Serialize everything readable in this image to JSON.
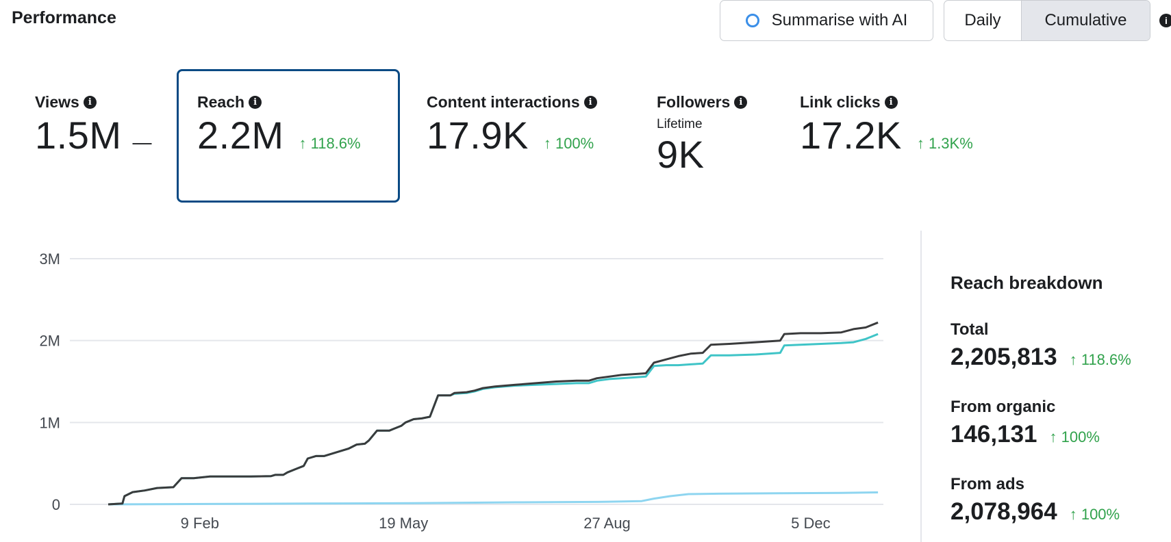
{
  "header": {
    "title": "Performance",
    "summarise_label": "Summarise with AI",
    "toggle": {
      "daily": "Daily",
      "cumulative": "Cumulative",
      "selected": "Cumulative"
    }
  },
  "metrics": [
    {
      "label": "Views",
      "value": "1.5M",
      "change": "—"
    },
    {
      "label": "Reach",
      "value": "2.2M",
      "change": "↑ 118.6%"
    },
    {
      "label": "Content interactions",
      "value": "17.9K",
      "change": "↑ 100%"
    },
    {
      "label": "Followers",
      "sublabel": "Lifetime",
      "value": "9K"
    },
    {
      "label": "Link clicks",
      "value": "17.2K",
      "change": "↑ 1.3K%"
    }
  ],
  "breakdown": {
    "title": "Reach breakdown",
    "items": [
      {
        "label": "Total",
        "value": "2,205,813",
        "change": "↑ 118.6%"
      },
      {
        "label": "From organic",
        "value": "146,131",
        "change": "↑ 100%"
      },
      {
        "label": "From ads",
        "value": "2,078,964",
        "change": "↑ 100%"
      }
    ]
  },
  "colors": {
    "total": "#3a3b3c",
    "ads": "#3fc4c7",
    "organic": "#8ed5f0",
    "accent": "#0a4a84",
    "positive": "#31a24c"
  },
  "chart_data": {
    "type": "line",
    "x_ticks": [
      "9 Feb",
      "19 May",
      "27 Aug",
      "5 Dec"
    ],
    "y_ticks": [
      "3M",
      "2M",
      "1M",
      "0"
    ],
    "ylim": [
      0,
      3000000
    ],
    "x_range_days": [
      0,
      380
    ],
    "x_tick_days": [
      45,
      145,
      245,
      345
    ],
    "series": [
      {
        "name": "Total",
        "points": [
          [
            0,
            0
          ],
          [
            7,
            10000
          ],
          [
            8,
            100000
          ],
          [
            12,
            150000
          ],
          [
            18,
            170000
          ],
          [
            24,
            200000
          ],
          [
            32,
            210000
          ],
          [
            36,
            320000
          ],
          [
            42,
            320000
          ],
          [
            50,
            340000
          ],
          [
            60,
            340000
          ],
          [
            70,
            340000
          ],
          [
            80,
            345000
          ],
          [
            82,
            360000
          ],
          [
            86,
            360000
          ],
          [
            88,
            390000
          ],
          [
            92,
            430000
          ],
          [
            96,
            470000
          ],
          [
            98,
            560000
          ],
          [
            102,
            590000
          ],
          [
            106,
            590000
          ],
          [
            110,
            620000
          ],
          [
            114,
            650000
          ],
          [
            118,
            680000
          ],
          [
            122,
            730000
          ],
          [
            126,
            740000
          ],
          [
            128,
            780000
          ],
          [
            132,
            900000
          ],
          [
            138,
            900000
          ],
          [
            140,
            920000
          ],
          [
            144,
            960000
          ],
          [
            146,
            1000000
          ],
          [
            150,
            1040000
          ],
          [
            154,
            1050000
          ],
          [
            158,
            1070000
          ],
          [
            162,
            1330000
          ],
          [
            168,
            1330000
          ],
          [
            170,
            1360000
          ],
          [
            176,
            1370000
          ],
          [
            180,
            1390000
          ],
          [
            184,
            1420000
          ],
          [
            190,
            1440000
          ],
          [
            200,
            1460000
          ],
          [
            210,
            1480000
          ],
          [
            220,
            1500000
          ],
          [
            230,
            1510000
          ],
          [
            236,
            1510000
          ],
          [
            240,
            1540000
          ],
          [
            246,
            1560000
          ],
          [
            252,
            1580000
          ],
          [
            264,
            1600000
          ],
          [
            268,
            1730000
          ],
          [
            274,
            1770000
          ],
          [
            280,
            1810000
          ],
          [
            286,
            1840000
          ],
          [
            292,
            1850000
          ],
          [
            296,
            1950000
          ],
          [
            305,
            1960000
          ],
          [
            318,
            1980000
          ],
          [
            330,
            2000000
          ],
          [
            332,
            2080000
          ],
          [
            340,
            2090000
          ],
          [
            350,
            2090000
          ],
          [
            360,
            2100000
          ],
          [
            366,
            2140000
          ],
          [
            372,
            2160000
          ],
          [
            378,
            2220000
          ]
        ]
      },
      {
        "name": "From ads",
        "points": [
          [
            0,
            0
          ],
          [
            7,
            10000
          ],
          [
            8,
            100000
          ],
          [
            12,
            150000
          ],
          [
            18,
            170000
          ],
          [
            24,
            200000
          ],
          [
            32,
            210000
          ],
          [
            36,
            320000
          ],
          [
            42,
            320000
          ],
          [
            50,
            340000
          ],
          [
            60,
            340000
          ],
          [
            70,
            340000
          ],
          [
            80,
            345000
          ],
          [
            82,
            360000
          ],
          [
            86,
            360000
          ],
          [
            88,
            390000
          ],
          [
            92,
            430000
          ],
          [
            96,
            470000
          ],
          [
            98,
            560000
          ],
          [
            102,
            590000
          ],
          [
            106,
            590000
          ],
          [
            110,
            620000
          ],
          [
            114,
            650000
          ],
          [
            118,
            680000
          ],
          [
            122,
            730000
          ],
          [
            126,
            740000
          ],
          [
            128,
            780000
          ],
          [
            132,
            900000
          ],
          [
            138,
            900000
          ],
          [
            140,
            920000
          ],
          [
            144,
            960000
          ],
          [
            146,
            1000000
          ],
          [
            150,
            1040000
          ],
          [
            154,
            1050000
          ],
          [
            158,
            1070000
          ],
          [
            162,
            1330000
          ],
          [
            168,
            1330000
          ],
          [
            170,
            1350000
          ],
          [
            176,
            1360000
          ],
          [
            180,
            1380000
          ],
          [
            184,
            1410000
          ],
          [
            190,
            1430000
          ],
          [
            200,
            1450000
          ],
          [
            210,
            1460000
          ],
          [
            220,
            1470000
          ],
          [
            230,
            1480000
          ],
          [
            236,
            1480000
          ],
          [
            240,
            1510000
          ],
          [
            246,
            1530000
          ],
          [
            252,
            1540000
          ],
          [
            264,
            1560000
          ],
          [
            268,
            1690000
          ],
          [
            274,
            1700000
          ],
          [
            280,
            1700000
          ],
          [
            286,
            1710000
          ],
          [
            292,
            1720000
          ],
          [
            296,
            1820000
          ],
          [
            305,
            1820000
          ],
          [
            318,
            1830000
          ],
          [
            330,
            1850000
          ],
          [
            332,
            1940000
          ],
          [
            340,
            1950000
          ],
          [
            350,
            1960000
          ],
          [
            360,
            1970000
          ],
          [
            366,
            1980000
          ],
          [
            372,
            2020000
          ],
          [
            378,
            2080000
          ]
        ]
      },
      {
        "name": "From organic",
        "points": [
          [
            0,
            0
          ],
          [
            50,
            5000
          ],
          [
            100,
            10000
          ],
          [
            150,
            15000
          ],
          [
            200,
            25000
          ],
          [
            240,
            30000
          ],
          [
            262,
            40000
          ],
          [
            268,
            70000
          ],
          [
            276,
            100000
          ],
          [
            285,
            125000
          ],
          [
            300,
            130000
          ],
          [
            330,
            135000
          ],
          [
            360,
            140000
          ],
          [
            378,
            146000
          ]
        ]
      }
    ]
  }
}
